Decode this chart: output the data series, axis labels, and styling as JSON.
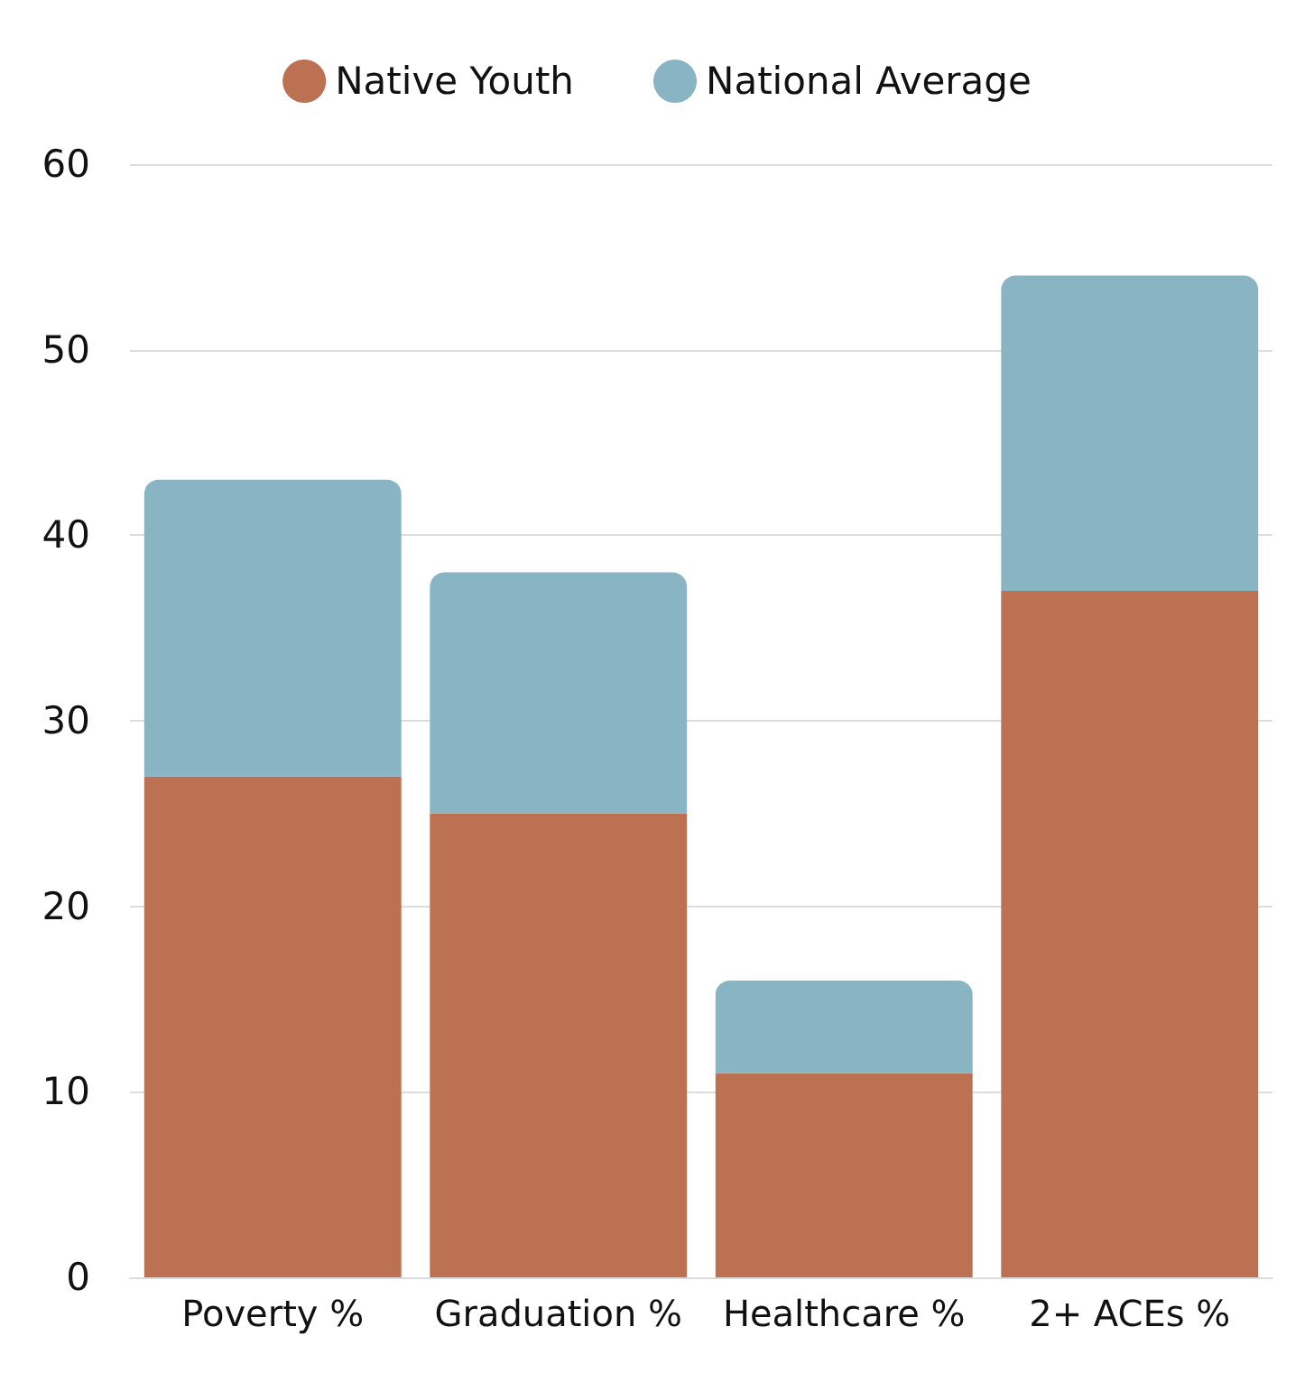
{
  "chart_data": {
    "type": "bar",
    "stacked": true,
    "categories": [
      "Poverty %",
      "Graduation %",
      "Healthcare %",
      "2+ ACEs %"
    ],
    "series": [
      {
        "name": "Native Youth",
        "color": "#bb7152",
        "values": [
          27,
          25,
          11,
          37
        ]
      },
      {
        "name": "National Average",
        "color": "#88b4c4",
        "values": [
          16,
          13,
          5,
          17
        ]
      }
    ],
    "ylim": [
      0,
      60
    ],
    "yticks": [
      0,
      10,
      20,
      30,
      40,
      50,
      60
    ],
    "grid": "y",
    "legend": "top"
  }
}
